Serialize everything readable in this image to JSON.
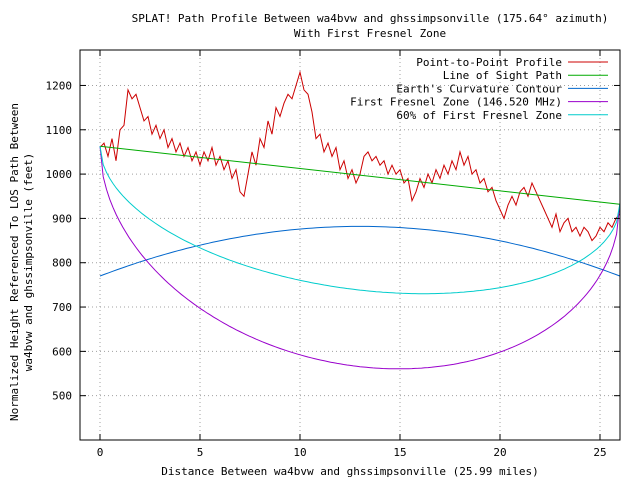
{
  "chart_data": {
    "type": "line",
    "title_line1": "SPLAT! Path Profile Between wa4bvw and ghssimpsonville (175.64° azimuth)",
    "title_line2": "With First Fresnel Zone",
    "xlabel": "Distance Between wa4bvw and ghssimpsonville (25.99 miles)",
    "ylabel_line1": "Normalized Height Referenced To LOS Path Between",
    "ylabel_line2": "wa4bvw and ghssimpsonville (feet)",
    "xlim": [
      -1,
      26
    ],
    "ylim": [
      400,
      1280
    ],
    "xticks": [
      0,
      5,
      10,
      15,
      20,
      25
    ],
    "yticks": [
      500,
      600,
      700,
      800,
      900,
      1000,
      1100,
      1200
    ],
    "grid": true,
    "legend_position": "top-right",
    "series": [
      {
        "name": "Point-to-Point Profile",
        "color": "#cc0000",
        "x": [
          0,
          0.2,
          0.4,
          0.6,
          0.8,
          1.0,
          1.2,
          1.4,
          1.6,
          1.8,
          2.0,
          2.2,
          2.4,
          2.6,
          2.8,
          3.0,
          3.2,
          3.4,
          3.6,
          3.8,
          4.0,
          4.2,
          4.4,
          4.6,
          4.8,
          5.0,
          5.2,
          5.4,
          5.6,
          5.8,
          6.0,
          6.2,
          6.4,
          6.6,
          6.8,
          7.0,
          7.2,
          7.4,
          7.6,
          7.8,
          8.0,
          8.2,
          8.4,
          8.6,
          8.8,
          9.0,
          9.2,
          9.4,
          9.6,
          9.8,
          10.0,
          10.2,
          10.4,
          10.6,
          10.8,
          11.0,
          11.2,
          11.4,
          11.6,
          11.8,
          12.0,
          12.2,
          12.4,
          12.6,
          12.8,
          13.0,
          13.2,
          13.4,
          13.6,
          13.8,
          14.0,
          14.2,
          14.4,
          14.6,
          14.8,
          15.0,
          15.2,
          15.4,
          15.6,
          15.8,
          16.0,
          16.2,
          16.4,
          16.6,
          16.8,
          17.0,
          17.2,
          17.4,
          17.6,
          17.8,
          18.0,
          18.2,
          18.4,
          18.6,
          18.8,
          19.0,
          19.2,
          19.4,
          19.6,
          19.8,
          20.0,
          20.2,
          20.4,
          20.6,
          20.8,
          21.0,
          21.2,
          21.4,
          21.6,
          21.8,
          22.0,
          22.2,
          22.4,
          22.6,
          22.8,
          23.0,
          23.2,
          23.4,
          23.6,
          23.8,
          24.0,
          24.2,
          24.4,
          24.6,
          24.8,
          25.0,
          25.2,
          25.4,
          25.6,
          25.8,
          25.99
        ],
        "y": [
          1060,
          1070,
          1040,
          1080,
          1030,
          1100,
          1110,
          1190,
          1170,
          1180,
          1150,
          1120,
          1130,
          1090,
          1110,
          1080,
          1100,
          1060,
          1080,
          1050,
          1070,
          1040,
          1060,
          1030,
          1050,
          1020,
          1050,
          1030,
          1060,
          1020,
          1040,
          1010,
          1030,
          990,
          1010,
          960,
          950,
          1000,
          1050,
          1020,
          1080,
          1060,
          1120,
          1090,
          1150,
          1130,
          1160,
          1180,
          1170,
          1200,
          1230,
          1190,
          1180,
          1140,
          1080,
          1090,
          1050,
          1070,
          1040,
          1060,
          1010,
          1030,
          990,
          1010,
          980,
          1000,
          1040,
          1050,
          1030,
          1040,
          1020,
          1030,
          1000,
          1020,
          1000,
          1010,
          980,
          990,
          940,
          960,
          990,
          970,
          1000,
          980,
          1010,
          990,
          1020,
          1000,
          1030,
          1010,
          1050,
          1020,
          1040,
          1000,
          1010,
          980,
          990,
          960,
          970,
          940,
          920,
          900,
          930,
          950,
          930,
          960,
          970,
          950,
          980,
          960,
          940,
          920,
          900,
          880,
          910,
          870,
          890,
          900,
          870,
          880,
          860,
          880,
          870,
          850,
          860,
          880,
          870,
          890,
          880,
          900,
          910
        ],
        "note_ignore": ""
      },
      {
        "name": "Line of Sight Path",
        "color": "#00aa00",
        "x": [
          0,
          25.99
        ],
        "y": [
          1063,
          932
        ]
      },
      {
        "name": "Earth's Curvature Contour",
        "color": "#0066cc",
        "function": "curvature",
        "ends": [
          770,
          770
        ],
        "peak": 882
      },
      {
        "name": "First Fresnel Zone (146.520 MHz)",
        "color": "#9900cc",
        "function": "fresnel",
        "ends": [
          1063,
          932
        ],
        "depth": 432
      },
      {
        "name": "60% of First Fresnel Zone",
        "color": "#00cccc",
        "function": "fresnel",
        "ends": [
          1063,
          932
        ],
        "depth": 259.2
      }
    ]
  }
}
